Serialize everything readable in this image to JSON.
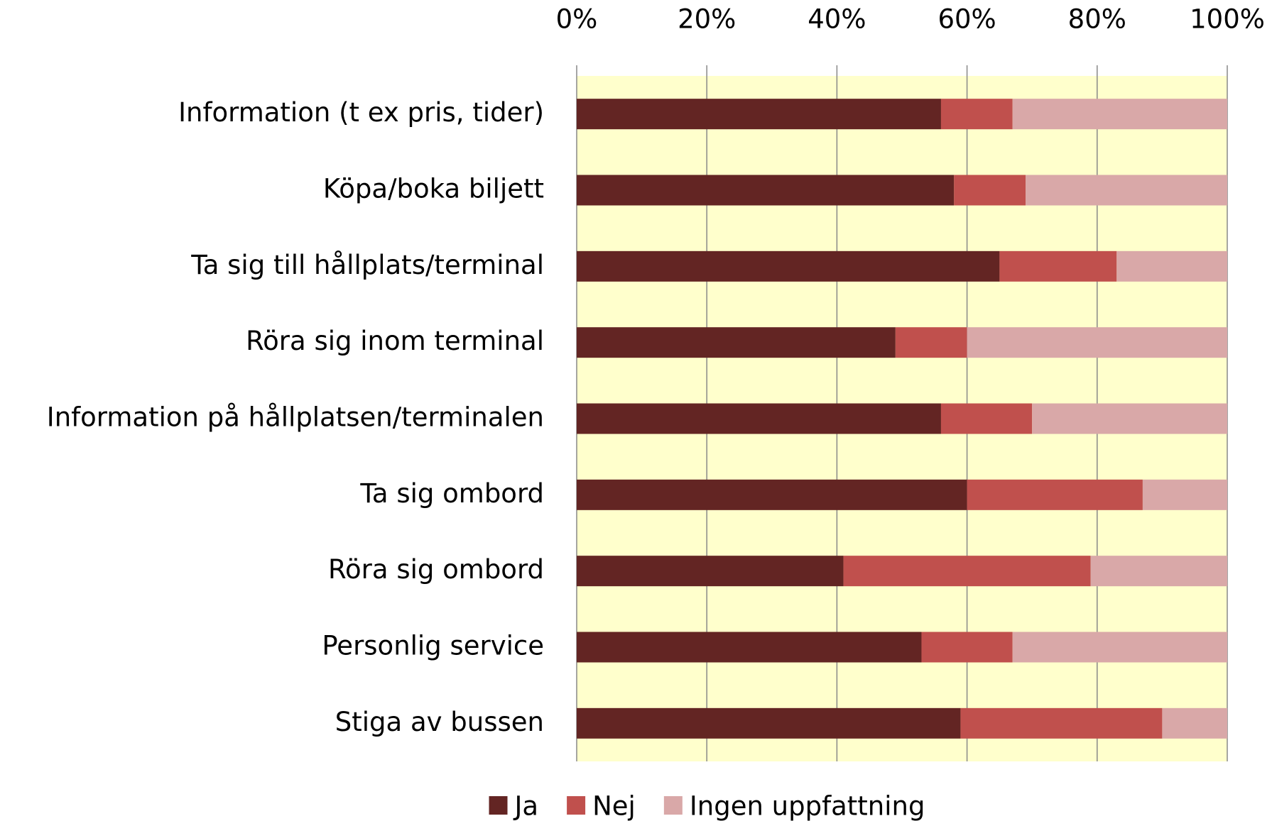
{
  "chart_data": {
    "type": "stacked_barh",
    "categories": [
      "Information (t ex pris, tider)",
      "Köpa/boka biljett",
      "Ta sig till hållplats/terminal",
      "Röra sig inom terminal",
      "Information på hållplatsen/terminalen",
      "Ta sig ombord",
      "Röra sig ombord",
      "Personlig service",
      "Stiga av bussen"
    ],
    "series": [
      {
        "name": "Ja",
        "color": "#632523",
        "values": [
          56,
          58,
          65,
          49,
          56,
          60,
          41,
          53,
          59
        ]
      },
      {
        "name": "Nej",
        "color": "#c0504d",
        "values": [
          11,
          11,
          18,
          11,
          14,
          27,
          38,
          14,
          31
        ]
      },
      {
        "name": "Ingen uppfattning",
        "color": "#d9a8a8",
        "values": [
          33,
          31,
          17,
          40,
          30,
          13,
          21,
          33,
          10
        ]
      }
    ],
    "xlim": [
      0,
      100
    ],
    "xticks": [
      {
        "value": 0,
        "label": "0%"
      },
      {
        "value": 20,
        "label": "20%"
      },
      {
        "value": 40,
        "label": "40%"
      },
      {
        "value": 60,
        "label": "60%"
      },
      {
        "value": 80,
        "label": "80%"
      },
      {
        "value": 100,
        "label": "100%"
      }
    ],
    "grid": true,
    "plot_background": "#ffffcc",
    "legend": "bottom"
  }
}
